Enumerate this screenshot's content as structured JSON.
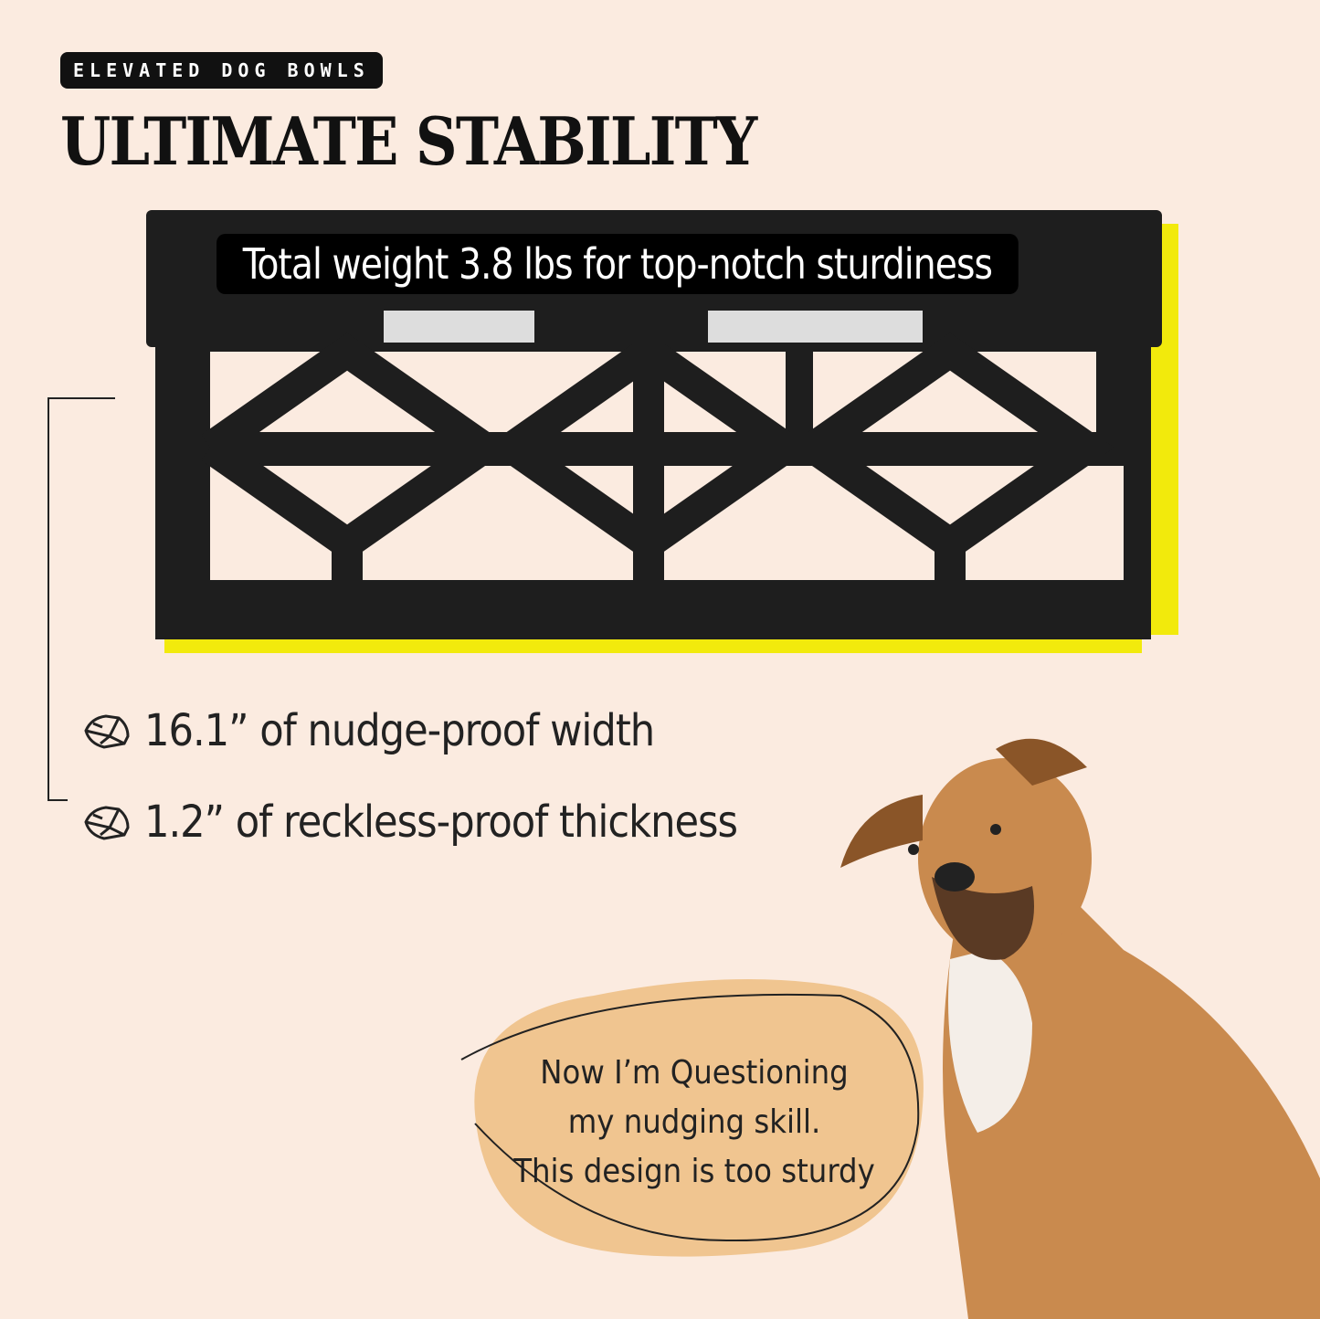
{
  "badge": "ELEVATED DOG BOWLS",
  "title": "ULTIMATE STABILITY",
  "caption": "Total weight 3.8 lbs for top-notch sturdiness",
  "features": [
    {
      "icon": "rock-icon",
      "text": "16.1” of nudge-proof width"
    },
    {
      "icon": "rock-icon",
      "text": "1.2” of reckless-proof thickness"
    }
  ],
  "bubble": {
    "lines": [
      "Now I’m Questioning",
      "my nudging skill.",
      "This design is too sturdy"
    ]
  },
  "colors": {
    "background": "#fbebe0",
    "accent": "#f2ea0c",
    "bubble": "#f0c590",
    "stand": "#1e1e1e"
  }
}
